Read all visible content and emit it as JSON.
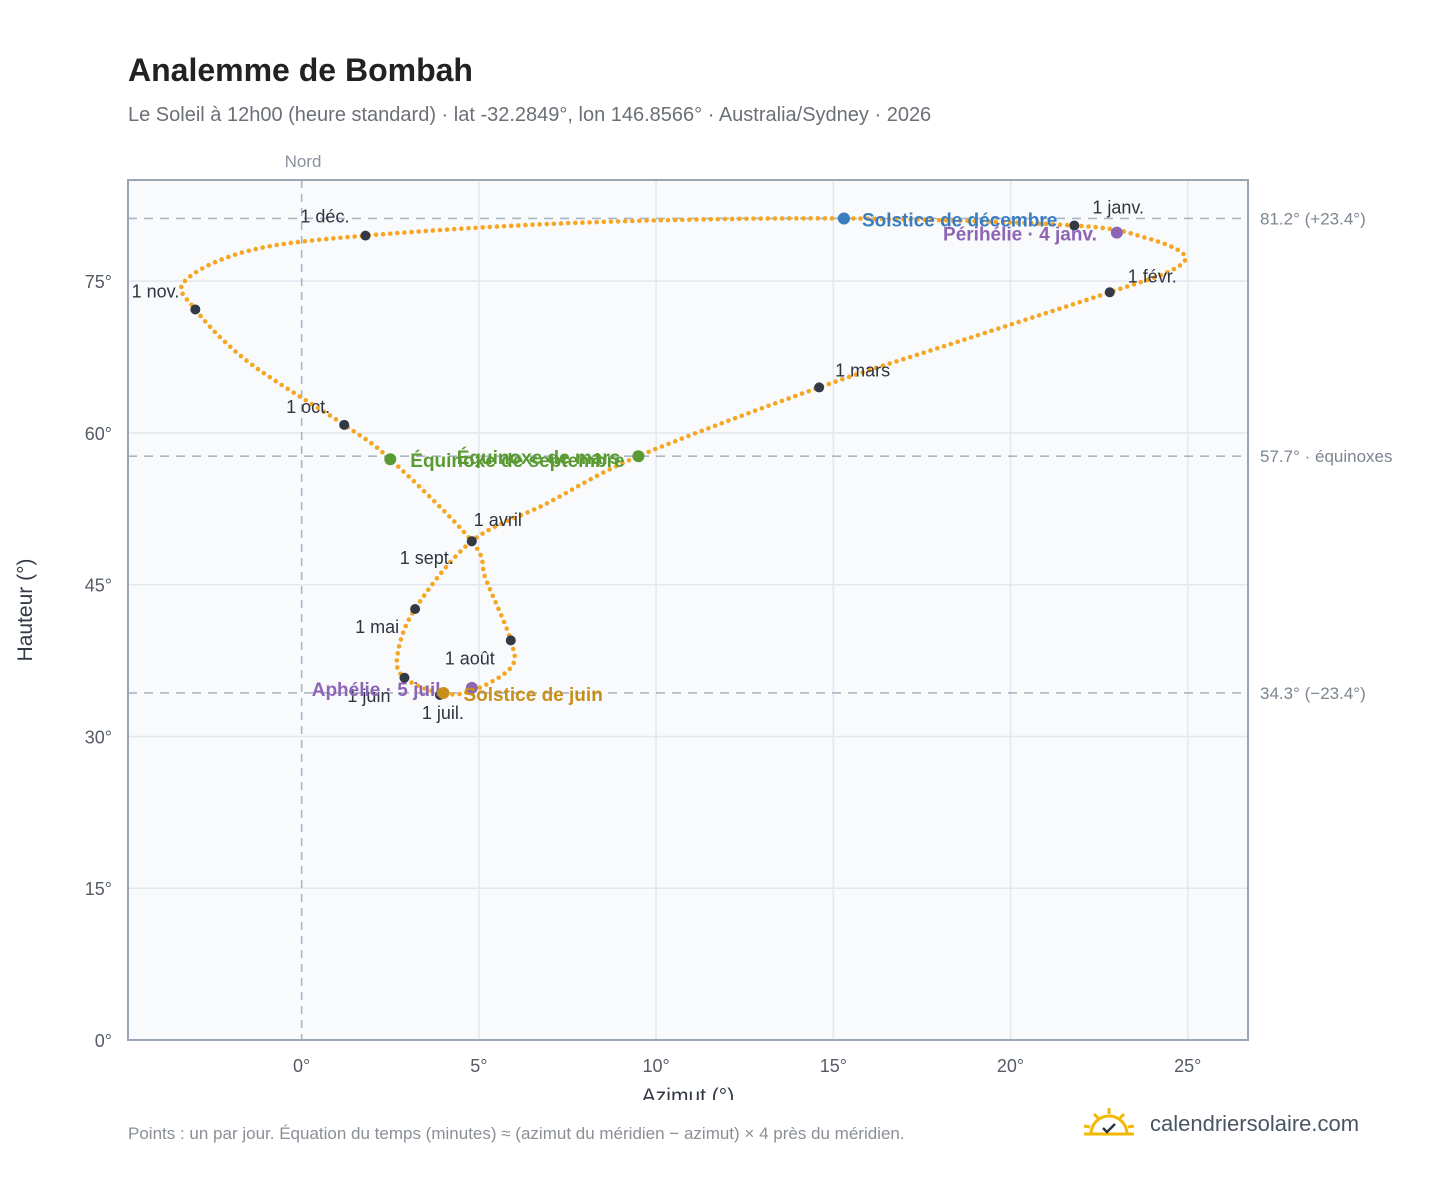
{
  "title": "Analemme de Bombah",
  "subtitle": "Le Soleil à 12h00 (heure standard) · lat -32.2849°, lon 146.8566° · Australia/Sydney · 2026",
  "footnote": "Points : un par jour. Équation du temps (minutes) ≈ (azimut du méridien − azimut) × 4 près du méridien.",
  "brand": "calendriersolaire.com",
  "colors": {
    "curve": "#f5a623",
    "month_marker": "#333a45",
    "equinox": "#5a9a32",
    "solstice_december": "#3a7cc0",
    "solstice_june": "#c8901a",
    "perihelion_aphelion": "#8e65b4",
    "grid": "#e3e8ee",
    "plot_bg": "#f8fafc"
  },
  "chart_data": {
    "type": "scatter",
    "xlabel": "Azimut (°)",
    "ylabel": "Hauteur (°)",
    "xlim": [
      -4.9,
      26.7
    ],
    "ylim": [
      0,
      85
    ],
    "x_ticks": [
      "0°",
      "5°",
      "10°",
      "15°",
      "20°",
      "25°"
    ],
    "y_ticks": [
      "0°",
      "15°",
      "30°",
      "45°",
      "60°",
      "75°"
    ],
    "grid": true,
    "north_label": "Nord",
    "reference_lines": [
      {
        "y": 81.2,
        "label": "81.2° (+23.4°)"
      },
      {
        "y": 57.7,
        "label": "57.7° · équinoxes"
      },
      {
        "y": 34.3,
        "label": "34.3° (−23.4°)"
      }
    ],
    "month_markers": [
      {
        "label": "1 janv.",
        "x": 21.8,
        "y": 80.5
      },
      {
        "label": "1 févr.",
        "x": 22.8,
        "y": 73.9
      },
      {
        "label": "1 mars",
        "x": 14.6,
        "y": 64.5
      },
      {
        "label": "1 avril",
        "x": 4.8,
        "y": 49.3
      },
      {
        "label": "1 mai",
        "x": 3.2,
        "y": 42.6
      },
      {
        "label": "1 juin",
        "x": 2.9,
        "y": 35.8
      },
      {
        "label": "1 juil.",
        "x": 3.9,
        "y": 34.1
      },
      {
        "label": "1 août",
        "x": 5.9,
        "y": 39.5
      },
      {
        "label": "1 sept.",
        "x": 4.8,
        "y": 49.3
      },
      {
        "label": "1 oct.",
        "x": 1.2,
        "y": 60.8
      },
      {
        "label": "1 nov.",
        "x": -3.0,
        "y": 72.2
      },
      {
        "label": "1 déc.",
        "x": 1.8,
        "y": 79.5
      }
    ],
    "events": [
      {
        "label": "Solstice de décembre",
        "x": 15.3,
        "y": 81.2,
        "kind": "solstice_december"
      },
      {
        "label": "Périhélie · 4 janv.",
        "x": 23.0,
        "y": 79.8,
        "kind": "perihelion_aphelion"
      },
      {
        "label": "Équinoxe de mars",
        "x": 9.5,
        "y": 57.7,
        "kind": "equinox"
      },
      {
        "label": "Équinoxe de septembre",
        "x": 2.5,
        "y": 57.4,
        "kind": "equinox"
      },
      {
        "label": "Aphélie · 5 juil.",
        "x": 4.8,
        "y": 34.8,
        "kind": "perihelion_aphelion"
      },
      {
        "label": "Solstice de juin",
        "x": 4.0,
        "y": 34.3,
        "kind": "solstice_june"
      }
    ],
    "path": [
      {
        "x": 21.8,
        "y": 80.5
      },
      {
        "x": 23.8,
        "y": 79.3
      },
      {
        "x": 24.9,
        "y": 77.6
      },
      {
        "x": 24.5,
        "y": 76.0
      },
      {
        "x": 22.8,
        "y": 73.9
      },
      {
        "x": 18.5,
        "y": 69.0
      },
      {
        "x": 14.6,
        "y": 64.5
      },
      {
        "x": 9.5,
        "y": 57.7
      },
      {
        "x": 6.9,
        "y": 53.0
      },
      {
        "x": 4.8,
        "y": 49.3
      },
      {
        "x": 3.2,
        "y": 42.6
      },
      {
        "x": 2.7,
        "y": 38.0
      },
      {
        "x": 2.9,
        "y": 35.8
      },
      {
        "x": 3.9,
        "y": 34.3
      },
      {
        "x": 4.8,
        "y": 34.5
      },
      {
        "x": 5.9,
        "y": 36.8
      },
      {
        "x": 5.9,
        "y": 39.5
      },
      {
        "x": 5.2,
        "y": 45.5
      },
      {
        "x": 4.8,
        "y": 49.3
      },
      {
        "x": 2.5,
        "y": 57.4
      },
      {
        "x": 1.2,
        "y": 60.8
      },
      {
        "x": -1.5,
        "y": 67.0
      },
      {
        "x": -3.0,
        "y": 72.2
      },
      {
        "x": -3.3,
        "y": 75.0
      },
      {
        "x": -1.5,
        "y": 78.0
      },
      {
        "x": 1.8,
        "y": 79.5
      },
      {
        "x": 8.0,
        "y": 80.8
      },
      {
        "x": 15.3,
        "y": 81.2
      },
      {
        "x": 21.8,
        "y": 80.5
      }
    ]
  }
}
